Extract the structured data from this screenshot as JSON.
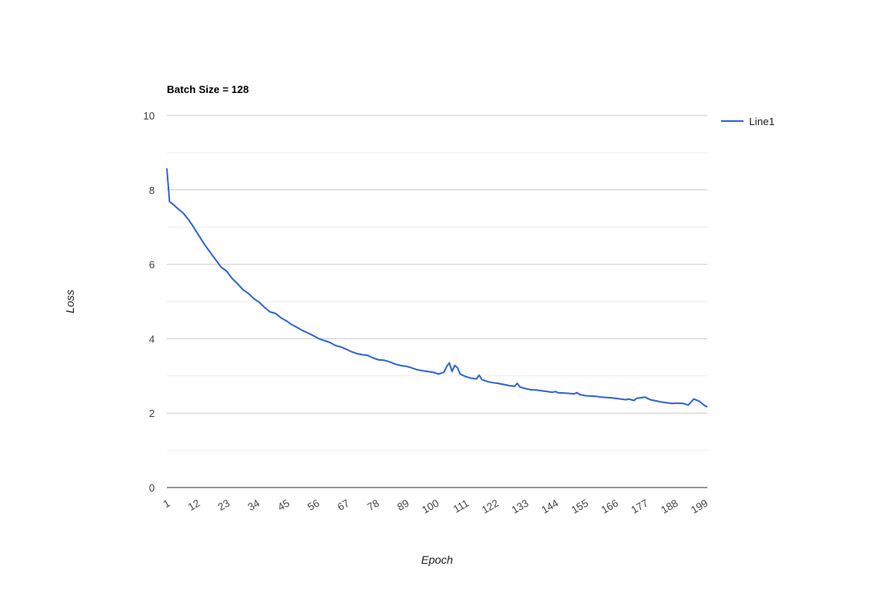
{
  "chart_data": {
    "type": "line",
    "title": "Batch Size = 128",
    "xlabel": "Epoch",
    "ylabel": "Loss",
    "xlim": [
      1,
      200
    ],
    "ylim": [
      0,
      10
    ],
    "y_ticks": [
      "0",
      "2",
      "4",
      "6",
      "8",
      "10"
    ],
    "x_ticks": [
      "1",
      "12",
      "23",
      "34",
      "45",
      "56",
      "67",
      "78",
      "89",
      "100",
      "111",
      "122",
      "133",
      "144",
      "155",
      "166",
      "177",
      "188",
      "199"
    ],
    "grid": true,
    "legend_position": "right",
    "series": [
      {
        "name": "Line1",
        "color": "#3366cc",
        "x": [
          1,
          2,
          3,
          5,
          7,
          9,
          11,
          13,
          15,
          17,
          19,
          21,
          23,
          25,
          27,
          29,
          31,
          33,
          35,
          37,
          39,
          41,
          43,
          45,
          47,
          49,
          51,
          53,
          55,
          57,
          59,
          61,
          63,
          65,
          67,
          69,
          71,
          73,
          75,
          77,
          79,
          81,
          83,
          85,
          87,
          89,
          91,
          93,
          95,
          97,
          99,
          101,
          103,
          104,
          105,
          106,
          107,
          108,
          109,
          111,
          113,
          115,
          116,
          117,
          119,
          121,
          123,
          125,
          127,
          129,
          130,
          131,
          133,
          135,
          137,
          139,
          141,
          143,
          144,
          145,
          147,
          149,
          151,
          152,
          153,
          155,
          157,
          159,
          161,
          163,
          165,
          167,
          169,
          170,
          171,
          173,
          174,
          175,
          177,
          179,
          181,
          183,
          185,
          187,
          189,
          191,
          192,
          193,
          195,
          197,
          199,
          200
        ],
        "values": [
          8.58,
          7.68,
          7.63,
          7.5,
          7.38,
          7.2,
          6.98,
          6.75,
          6.52,
          6.32,
          6.12,
          5.92,
          5.82,
          5.62,
          5.48,
          5.32,
          5.22,
          5.08,
          4.98,
          4.84,
          4.72,
          4.68,
          4.56,
          4.48,
          4.38,
          4.3,
          4.22,
          4.15,
          4.08,
          4.0,
          3.95,
          3.9,
          3.82,
          3.78,
          3.72,
          3.65,
          3.6,
          3.57,
          3.55,
          3.48,
          3.43,
          3.42,
          3.38,
          3.32,
          3.28,
          3.26,
          3.22,
          3.17,
          3.14,
          3.12,
          3.1,
          3.05,
          3.1,
          3.25,
          3.35,
          3.12,
          3.28,
          3.22,
          3.05,
          2.98,
          2.94,
          2.92,
          3.02,
          2.9,
          2.85,
          2.82,
          2.8,
          2.77,
          2.74,
          2.72,
          2.8,
          2.7,
          2.66,
          2.63,
          2.62,
          2.6,
          2.58,
          2.56,
          2.58,
          2.55,
          2.54,
          2.53,
          2.52,
          2.55,
          2.5,
          2.47,
          2.46,
          2.45,
          2.43,
          2.42,
          2.41,
          2.39,
          2.37,
          2.36,
          2.38,
          2.34,
          2.4,
          2.41,
          2.43,
          2.36,
          2.33,
          2.3,
          2.28,
          2.26,
          2.27,
          2.26,
          2.24,
          2.22,
          2.38,
          2.32,
          2.2,
          2.17
        ]
      }
    ]
  }
}
